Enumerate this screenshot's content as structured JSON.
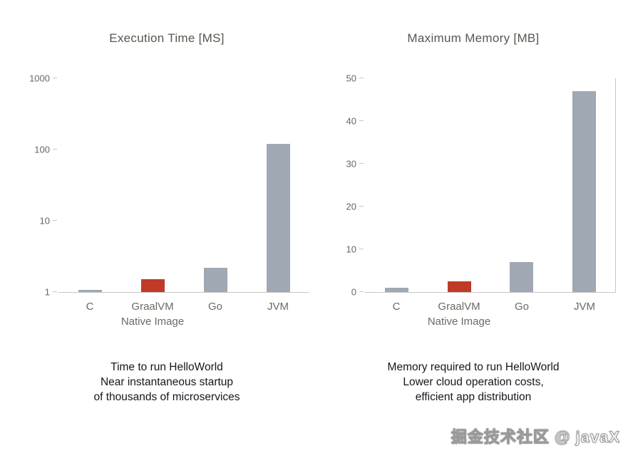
{
  "chart_data": [
    {
      "type": "bar",
      "title": "Execution Time [MS]",
      "yscale": "log",
      "ymin": 1,
      "ymax": 1000,
      "yticks": [
        1,
        10,
        100,
        1000
      ],
      "grid": false,
      "categories": [
        "C",
        "GraalVM\nNative Image",
        "Go",
        "JVM"
      ],
      "values": [
        1,
        1.5,
        2.2,
        120
      ],
      "bar_colors": [
        "#9fa8b3",
        "#bf3a27",
        "#9fa8b3",
        "#9fa8b3"
      ],
      "caption": "Time to run HelloWorld\nNear instantaneous startup\nof thousands of microservices"
    },
    {
      "type": "bar",
      "title": "Maximum Memory [MB]",
      "yscale": "linear",
      "ymin": 0,
      "ymax": 50,
      "yticks": [
        0,
        10,
        20,
        30,
        40,
        50
      ],
      "grid": false,
      "categories": [
        "C",
        "GraalVM\nNative Image",
        "Go",
        "JVM"
      ],
      "values": [
        1,
        2.5,
        7,
        47
      ],
      "bar_colors": [
        "#9fa8b3",
        "#bf3a27",
        "#9fa8b3",
        "#9fa8b3"
      ],
      "caption": "Memory required to run HelloWorld\nLower cloud operation costs,\nefficient app distribution"
    }
  ],
  "watermark": "掘金技术社区 @ javaX",
  "colors": {
    "bar_gray": "#9fa8b3",
    "bar_red": "#bf3a27",
    "axis": "#c6c6c6",
    "title_text": "#5a554f",
    "tick_text": "#666666",
    "caption_text": "#16161e"
  }
}
